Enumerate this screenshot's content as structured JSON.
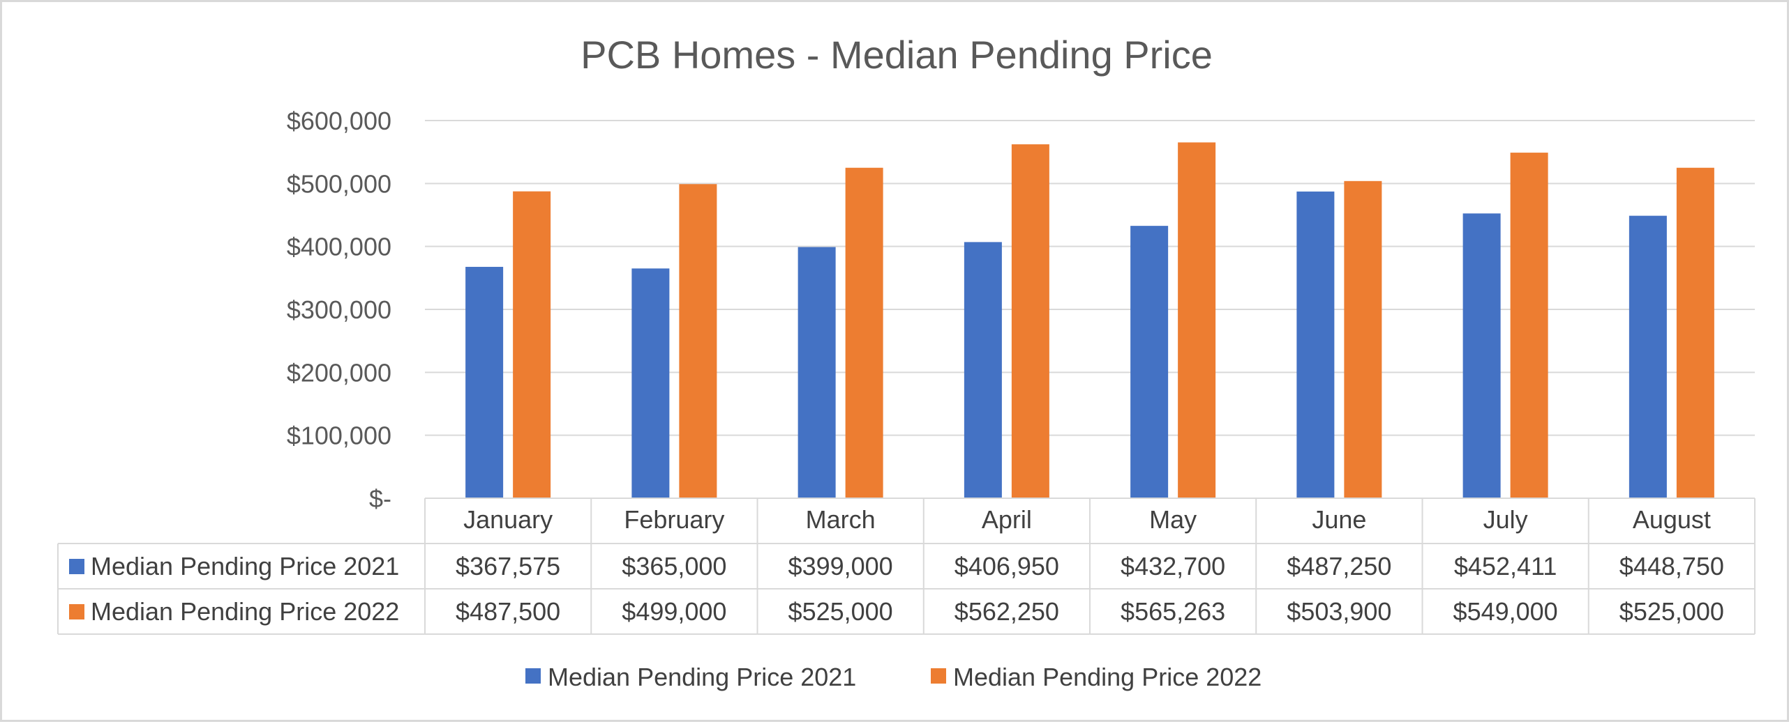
{
  "chart_data": {
    "type": "bar",
    "title": "PCB Homes - Median Pending Price",
    "categories": [
      "January",
      "February",
      "March",
      "April",
      "May",
      "June",
      "July",
      "August"
    ],
    "series": [
      {
        "name": "Median Pending Price  2021",
        "color": "#4472c4",
        "values": [
          367575,
          365000,
          399000,
          406950,
          432700,
          487250,
          452411,
          448750
        ],
        "labels": [
          "$367,575",
          "$365,000",
          "$399,000",
          "$406,950",
          "$432,700",
          "$487,250",
          "$452,411",
          "$448,750"
        ]
      },
      {
        "name": "Median Pending Price  2022",
        "color": "#ed7d31",
        "values": [
          487500,
          499000,
          525000,
          562250,
          565263,
          503900,
          549000,
          525000
        ],
        "labels": [
          "$487,500",
          "$499,000",
          "$525,000",
          "$562,250",
          "$565,263",
          "$503,900",
          "$549,000",
          "$525,000"
        ]
      }
    ],
    "y_ticks": [
      0,
      100000,
      200000,
      300000,
      400000,
      500000,
      600000
    ],
    "y_tick_labels": [
      "$-",
      "$100,000",
      "$200,000",
      "$300,000",
      "$400,000",
      "$500,000",
      "$600,000"
    ],
    "ylim": [
      0,
      600000
    ],
    "xlabel": "",
    "ylabel": "",
    "grid": true,
    "legend_position": "bottom",
    "data_table": true
  }
}
